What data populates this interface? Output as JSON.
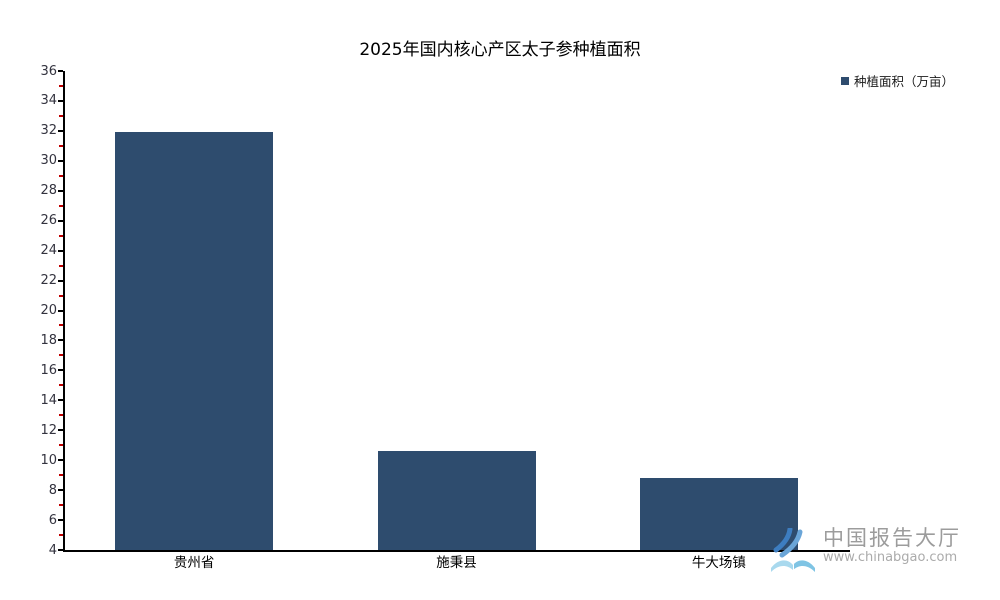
{
  "chart_data": {
    "type": "bar",
    "title": "2025年国内核心产区太子参种植面积",
    "legend_label": "种植面积（万亩）",
    "legend_position": "top-right",
    "categories": [
      "贵州省",
      "施秉县",
      "牛大场镇"
    ],
    "values": [
      31.9,
      10.6,
      8.8
    ],
    "series": [
      {
        "name": "种植面积（万亩）",
        "values": [
          31.9,
          10.6,
          8.8
        ]
      }
    ],
    "xlabel": "",
    "ylabel": "",
    "ylim": [
      4,
      36
    ],
    "y_major_step": 2,
    "y_minor_step": 1,
    "grid": false,
    "bar_color": "#2e4c6e",
    "axis_color": "#000000",
    "minor_tick_color": "#c00000",
    "tick_label_color": "#33333f"
  },
  "watermark": {
    "brand": "中国报告大厅",
    "url": "www.chinabgao.com",
    "logo": "chinabgao-open-book-logo",
    "logo_colors": {
      "stroke_dark": "#3d7dc0",
      "stroke_mid": "#6aa5d8",
      "book_light": "#a9d9ee",
      "book_mid": "#7fc4e4"
    }
  }
}
